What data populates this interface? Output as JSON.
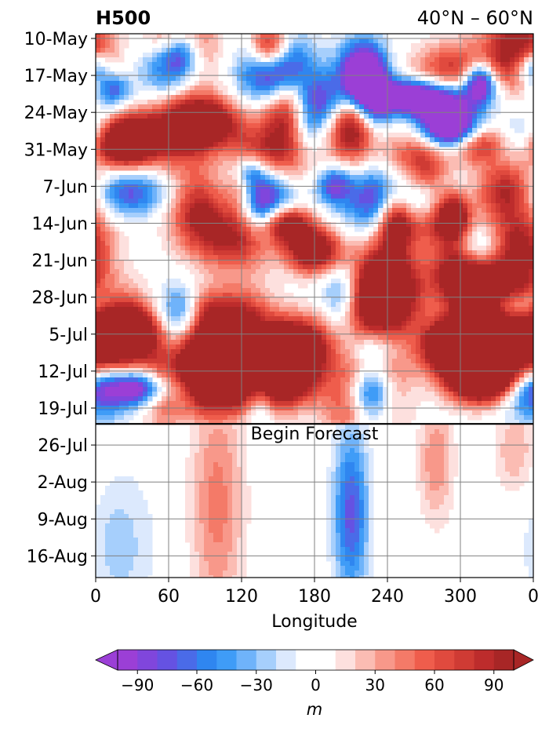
{
  "chart_data": {
    "type": "heatmap",
    "title_left": "H500",
    "title_right": "40°N – 60°N",
    "xlabel": "Longitude",
    "x_ticks": [
      "0",
      "60",
      "120",
      "180",
      "240",
      "300",
      "0"
    ],
    "x_tick_values": [
      0,
      60,
      120,
      180,
      240,
      300,
      360
    ],
    "y_ticks": [
      "10-May",
      "17-May",
      "24-May",
      "31-May",
      "7-Jun",
      "14-Jun",
      "21-Jun",
      "28-Jun",
      "5-Jul",
      "12-Jul",
      "19-Jul",
      "26-Jul",
      "2-Aug",
      "9-Aug",
      "16-Aug"
    ],
    "forecast_label": "Begin Forecast",
    "forecast_start": "2024-07-22",
    "colorbar": {
      "label": "m",
      "tick_labels": [
        "−90",
        "−60",
        "−30",
        "0",
        "30",
        "60",
        "90"
      ],
      "tick_values": [
        -90,
        -60,
        -30,
        0,
        30,
        60,
        90
      ],
      "levels": [
        -100,
        -90,
        -80,
        -70,
        -60,
        -50,
        -40,
        -30,
        -20,
        -10,
        10,
        20,
        30,
        40,
        50,
        60,
        70,
        80,
        90,
        100
      ],
      "colors": [
        "#9b3fd6",
        "#8046dc",
        "#6552e2",
        "#4a6be8",
        "#2f86f0",
        "#3f9cf7",
        "#6fb3fa",
        "#a6cffc",
        "#dce9fd",
        "#ffffff",
        "#fde0de",
        "#fbbcb3",
        "#f8988a",
        "#f47a68",
        "#ef5d4c",
        "#e04a3e",
        "#cf3b34",
        "#bd2c2c",
        "#a82626"
      ],
      "extend": "both"
    }
  }
}
